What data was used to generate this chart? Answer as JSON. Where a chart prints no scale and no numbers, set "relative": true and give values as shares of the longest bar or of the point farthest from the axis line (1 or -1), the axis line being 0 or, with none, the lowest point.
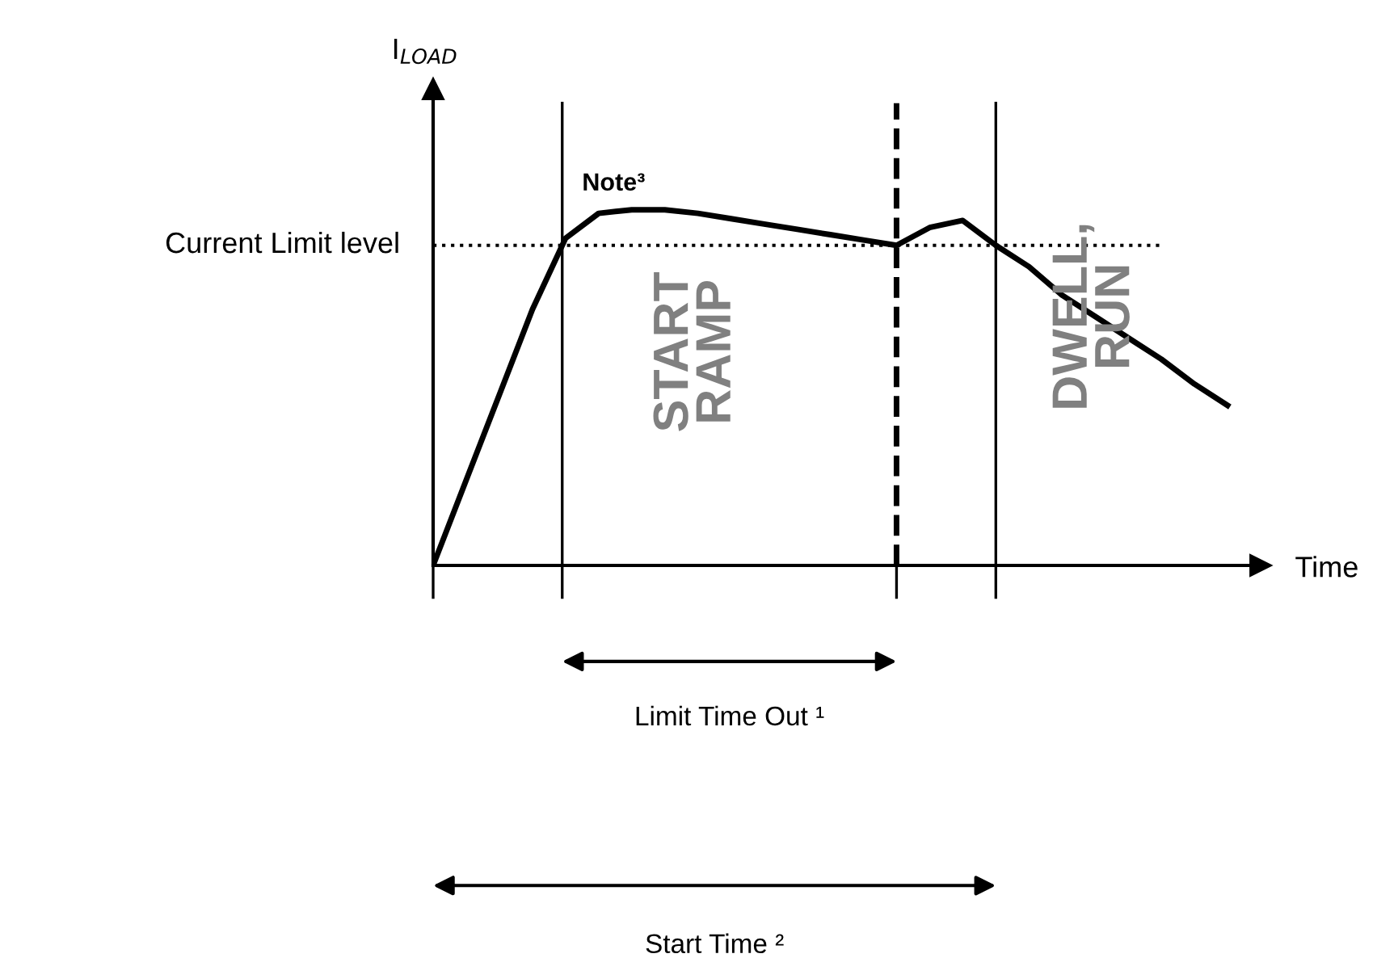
{
  "chart_data": {
    "type": "line",
    "relative": true,
    "xlabel": "Time",
    "ylabel": "I$_{LOAD}$",
    "categories": [
      null,
      null,
      null,
      null,
      null,
      null,
      null,
      null,
      null,
      null,
      null,
      null,
      null,
      null,
      null,
      null,
      null,
      null,
      null,
      null,
      null,
      null,
      null,
      null,
      null
    ],
    "series": [
      {
        "color": "#000000",
        "values": [
          0,
          0.24,
          0.48,
          0.72,
          0.92,
          0.99,
          1.0,
          1.0,
          0.99,
          0.975,
          0.96,
          0.945,
          0.93,
          0.915,
          0.9,
          0.95,
          0.97,
          0.9,
          0.84,
          0.76,
          0.7,
          0.64,
          0.58,
          0.51,
          0.45
        ]
      }
    ],
    "marker": "none",
    "line_style": "solid",
    "tick_labels": false,
    "ref_lines": [
      {
        "axis": "y",
        "value": 0.9,
        "label": "Current Limit level",
        "line_style": "dotted",
        "color": "#000000"
      }
    ],
    "annotations": [
      "Note³",
      "START RAMP",
      "DWELL, RUN",
      "Limit Time Out ¹",
      "Start Time ²"
    ]
  }
}
